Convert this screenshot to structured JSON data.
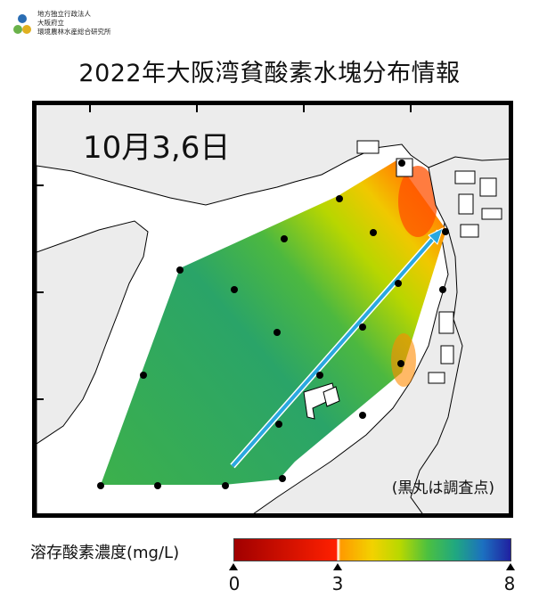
{
  "header": {
    "org_lines": [
      "地方独立行政法人",
      "大阪府立",
      "環境農林水産総合研究所"
    ],
    "title": "2022年大阪湾貧酸素水塊分布情報"
  },
  "map": {
    "date_label": "10月3,6日",
    "note": "(黒丸は調査点)"
  },
  "legend": {
    "label": "溶存酸素濃度(mg/L)",
    "ticks": [
      "0",
      "3",
      "8"
    ],
    "colors": [
      "#a00000",
      "#ff2000",
      "#ff9a00",
      "#f2d200",
      "#b8d800",
      "#4cc040",
      "#20a880",
      "#1c70c0",
      "#2020a0"
    ]
  }
}
